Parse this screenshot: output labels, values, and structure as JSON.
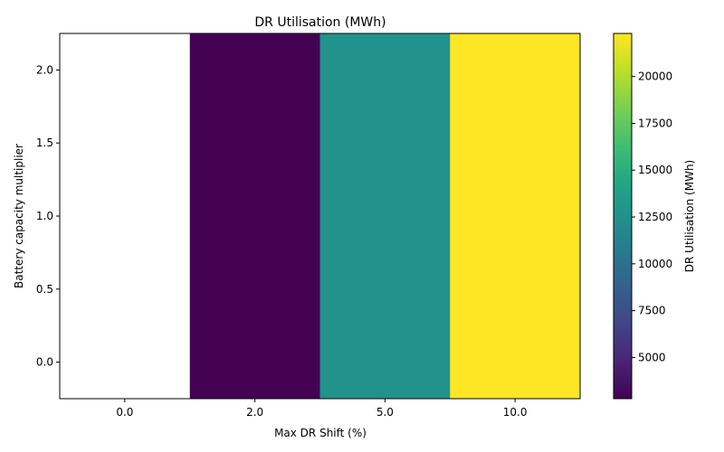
{
  "chart_data": {
    "type": "heatmap",
    "title": "DR Utilisation (MWh)",
    "xlabel": "Max DR Shift (%)",
    "ylabel": "Battery capacity multiplier",
    "x_categories": [
      "0.0",
      "2.0",
      "5.0",
      "10.0"
    ],
    "y_ticks": [
      "2.0",
      "1.5",
      "1.0",
      "0.5",
      "0.0"
    ],
    "y_tick_values": [
      2.0,
      1.5,
      1.0,
      0.5,
      0.0
    ],
    "ylim": [
      -0.25,
      2.25
    ],
    "cells": [
      {
        "x": "0.0",
        "value": null
      },
      {
        "x": "2.0",
        "value": 2800
      },
      {
        "x": "5.0",
        "value": 12600
      },
      {
        "x": "10.0",
        "value": 22300
      }
    ],
    "colorbar": {
      "label": "DR Utilisation (MWh)",
      "range": [
        2800,
        22300
      ],
      "colormap": "viridis",
      "ticks": [
        "5000",
        "7500",
        "10000",
        "12500",
        "15000",
        "17500",
        "20000"
      ],
      "tick_values": [
        5000,
        7500,
        10000,
        12500,
        15000,
        17500,
        20000
      ]
    },
    "grid": false
  }
}
